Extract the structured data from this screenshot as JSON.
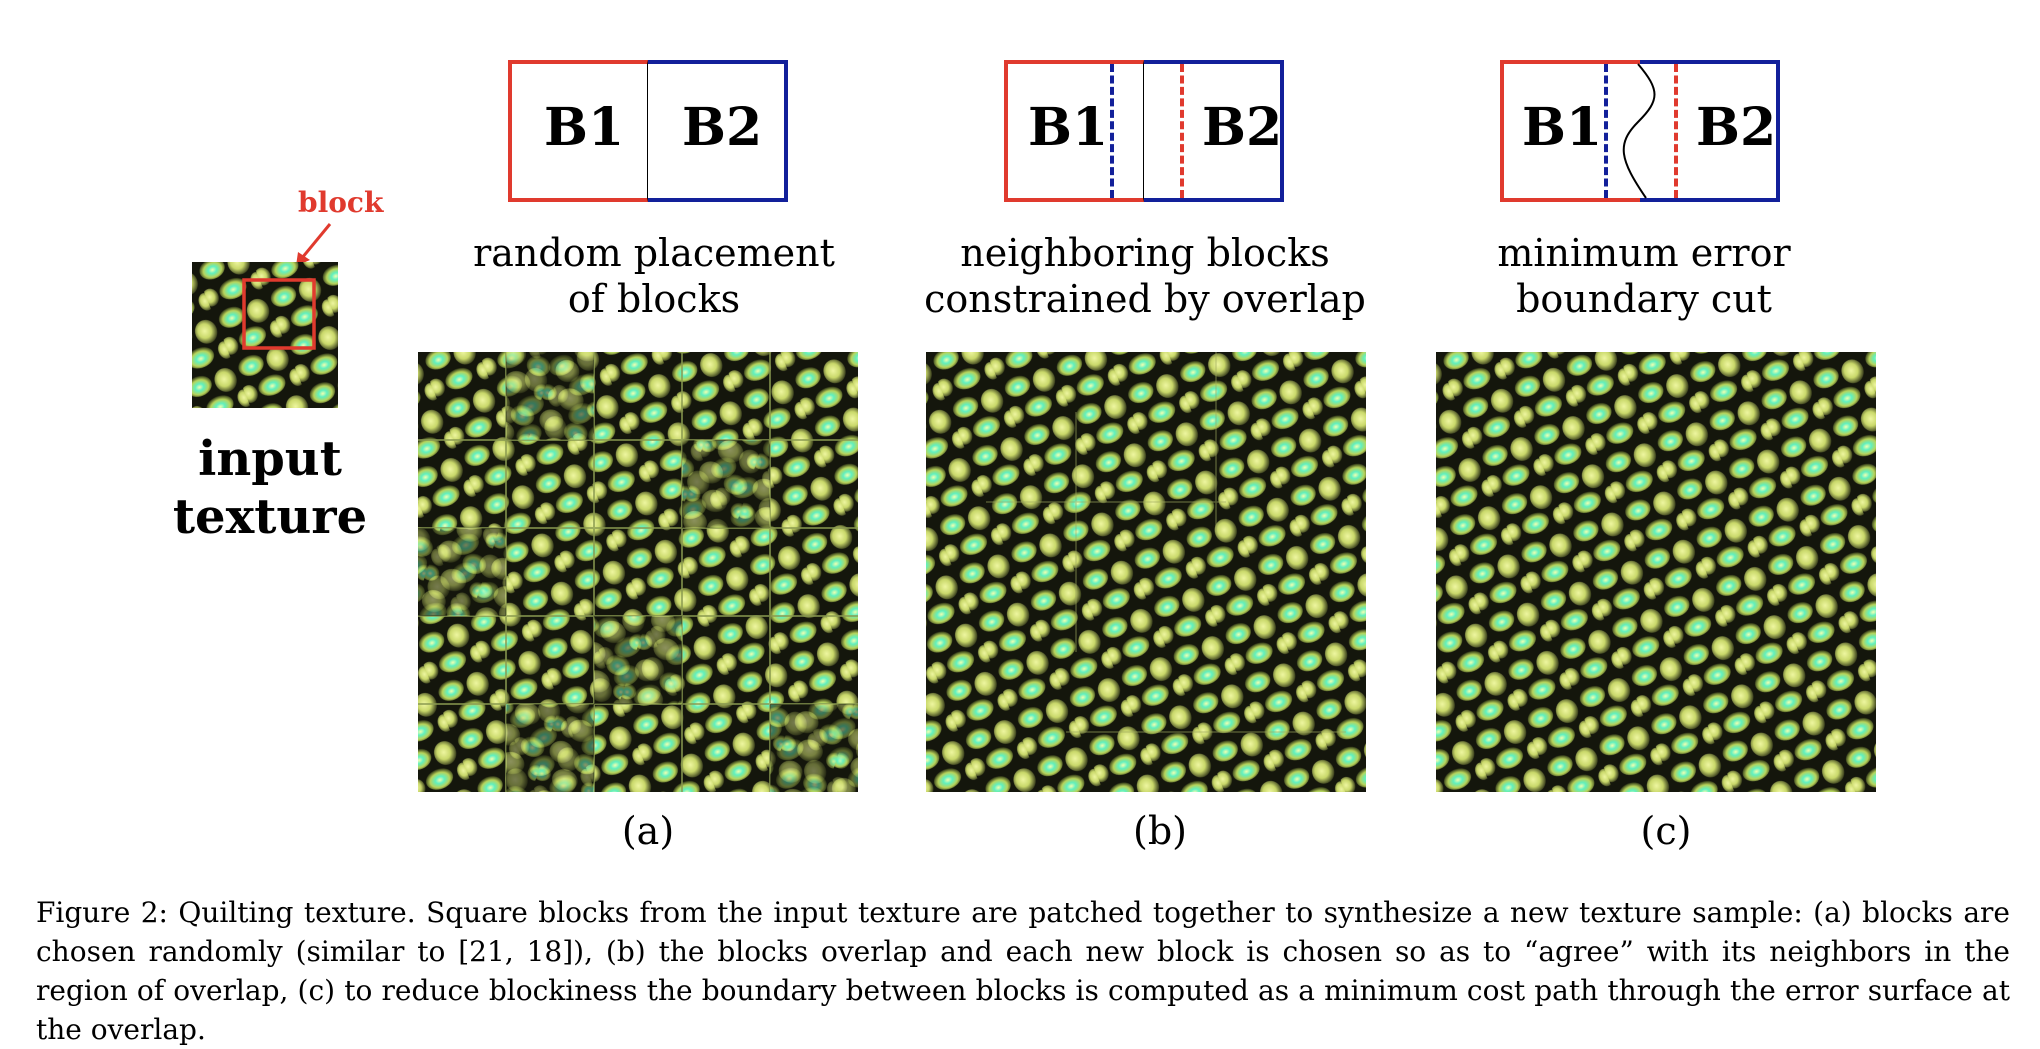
{
  "input": {
    "block_label": "block",
    "label_line1": "input",
    "label_line2": "texture"
  },
  "panels": [
    {
      "b1": "B1",
      "b2": "B2",
      "title_line1": "random placement",
      "title_line2": "of blocks",
      "sublabel": "(a)"
    },
    {
      "b1": "B1",
      "b2": "B2",
      "title_line1": "neighboring blocks",
      "title_line2": "constrained by overlap",
      "sublabel": "(b)"
    },
    {
      "b1": "B1",
      "b2": "B2",
      "title_line1": "minimum error",
      "title_line2": "boundary cut",
      "sublabel": "(c)"
    }
  ],
  "colors": {
    "b1_border": "#e03a2e",
    "b2_border": "#12209a",
    "texture_cell": "#c8e060",
    "texture_highlight": "#5ff0c0",
    "texture_dark": "#14160c"
  },
  "caption": {
    "text": "Figure 2: Quilting texture. Square blocks from the input texture are patched together to synthesize a new texture sample: (a) blocks are chosen randomly (similar to [21, 18]), (b) the blocks overlap and each new block is chosen so as to “agree” with its neighbors in the region of overlap, (c) to reduce blockiness the boundary between blocks is computed as a minimum cost path through the error surface at the overlap."
  }
}
